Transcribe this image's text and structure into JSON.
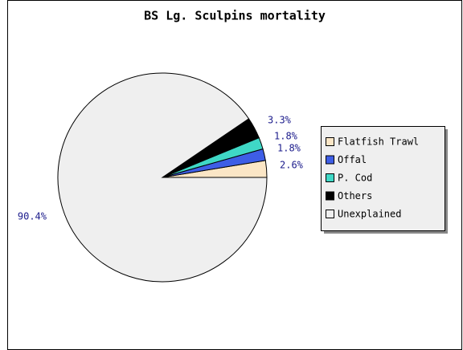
{
  "chart_data": {
    "type": "pie",
    "title": "BS Lg. Sculpins mortality",
    "categories": [
      "Flatfish Trawl",
      "Offal",
      "P. Cod",
      "Others",
      "Unexplained"
    ],
    "values": [
      2.6,
      1.8,
      1.8,
      3.3,
      90.4
    ],
    "value_labels": [
      "2.6%",
      "1.8%",
      "1.8%",
      "3.3%",
      "90.4%"
    ],
    "colors": [
      "#fbe6c6",
      "#3e5ee6",
      "#3fd8c6",
      "#000000",
      "#efefef"
    ],
    "legend": "right"
  }
}
